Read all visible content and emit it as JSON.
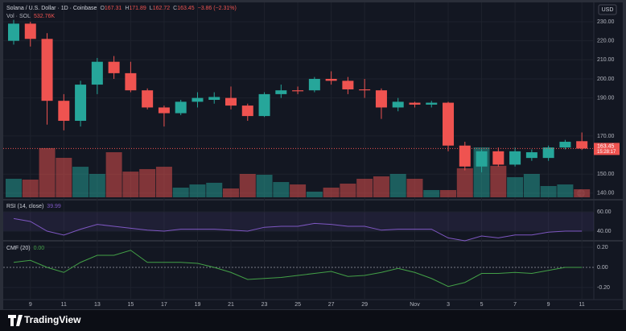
{
  "chart_data": {
    "type": "candlestick",
    "title": "Solana / U.S. Dollar · 1D · Coinbase",
    "ohlc_labels": [
      "O",
      "H",
      "L",
      "C"
    ],
    "change_label": "−3.86 (−2.31%)",
    "volume_title": "Vol · SOL",
    "volume_last_label": "532.76K",
    "currency": "USD",
    "countdown": "15:28:17",
    "brand": "TradingView",
    "grid": true,
    "up_color": "#26a69a",
    "down_color": "#ef5350",
    "categories": [
      null,
      "9",
      null,
      "11",
      null,
      "13",
      null,
      "15",
      null,
      "17",
      null,
      "19",
      null,
      "21",
      null,
      "23",
      null,
      "25",
      null,
      "27",
      null,
      "29",
      null,
      null,
      "Nov",
      null,
      "3",
      null,
      "5",
      null,
      "7",
      null,
      "9",
      null,
      "11"
    ],
    "open": [
      220,
      229,
      221,
      188.5,
      178,
      197,
      209,
      203,
      194,
      185,
      182,
      188,
      189,
      190,
      186,
      180.5,
      192,
      194,
      194,
      200,
      199,
      194.5,
      194,
      185,
      187.5,
      186.5,
      187.5,
      165,
      154,
      162,
      155,
      158.5,
      158.5,
      164,
      167.31
    ],
    "high": [
      231,
      230,
      224,
      192,
      199,
      211,
      212,
      209,
      195,
      186,
      189,
      193,
      193,
      196,
      187,
      193,
      197,
      196,
      201,
      204,
      201,
      200,
      195,
      190,
      188,
      188.5,
      188,
      167,
      163,
      164,
      164,
      163,
      165,
      168,
      171.89
    ],
    "low": [
      218,
      217,
      176,
      173,
      175,
      192,
      200,
      193,
      184,
      175,
      181,
      185,
      187,
      184,
      178,
      180,
      190,
      192,
      193,
      197,
      192,
      190,
      179,
      183,
      185,
      185,
      162,
      152,
      151,
      154,
      154,
      157,
      157,
      163,
      162.72
    ],
    "close": [
      229,
      221,
      188.5,
      178,
      197,
      209,
      203,
      194,
      185,
      182,
      188,
      190,
      190.5,
      186,
      180.5,
      192,
      194,
      193.5,
      200,
      199,
      194.5,
      194,
      185,
      188,
      186.5,
      187.5,
      165,
      154,
      162,
      155,
      162,
      161.5,
      164,
      167,
      163.45
    ],
    "volume": [
      1225,
      1170,
      3250,
      2610,
      2020,
      1545,
      2980,
      1700,
      1865,
      2020,
      640,
      850,
      960,
      585,
      1545,
      1490,
      1010,
      850,
      375,
      640,
      905,
      1225,
      1385,
      1545,
      1225,
      480,
      480,
      1920,
      3300,
      2080,
      1330,
      1545,
      745,
      850,
      532.76
    ],
    "ylim": [
      137,
      239.3
    ],
    "yticks": [
      {
        "value": 140,
        "label": "140.00"
      },
      {
        "value": 150,
        "label": "150.00"
      },
      {
        "value": 170,
        "label": "170.00"
      },
      {
        "value": 190,
        "label": "190.00"
      },
      {
        "value": 200,
        "label": "200.00"
      },
      {
        "value": 210,
        "label": "210.00"
      },
      {
        "value": 220,
        "label": "220.00"
      },
      {
        "value": 230,
        "label": "230.00"
      }
    ],
    "rsi": {
      "name": "RSI (14, close)",
      "color": "#7e57c2",
      "values": [
        53,
        50,
        40,
        36,
        42,
        47,
        45,
        43,
        41,
        40,
        42,
        42,
        42,
        41,
        40,
        44,
        45,
        45,
        48,
        47,
        45,
        45,
        41,
        42,
        42,
        42,
        33,
        30,
        35,
        33,
        36,
        36,
        39,
        40,
        39.99
      ],
      "ylim": [
        32.5,
        70
      ],
      "yticks": [
        {
          "value": 60,
          "label": "60.00"
        },
        {
          "value": 40,
          "label": "40.00"
        }
      ]
    },
    "cmf": {
      "name": "CMF (20)",
      "color": "#43a047",
      "last_label": "0.00",
      "values": [
        0.05,
        0.07,
        0.0,
        -0.05,
        0.05,
        0.12,
        0.12,
        0.17,
        0.05,
        0.05,
        0.05,
        0.04,
        0.0,
        -0.05,
        -0.12,
        -0.11,
        -0.1,
        -0.08,
        -0.06,
        -0.04,
        -0.09,
        -0.08,
        -0.05,
        -0.01,
        -0.05,
        -0.11,
        -0.19,
        -0.15,
        -0.06,
        -0.06,
        -0.05,
        -0.06,
        -0.03,
        0.0,
        0.0
      ],
      "ylim": [
        -0.304,
        0.24
      ],
      "yticks": [
        {
          "value": 0.2,
          "label": "0.20"
        },
        {
          "value": 0,
          "label": "0.00"
        },
        {
          "value": -0.2,
          "label": "-0.20"
        }
      ]
    }
  }
}
